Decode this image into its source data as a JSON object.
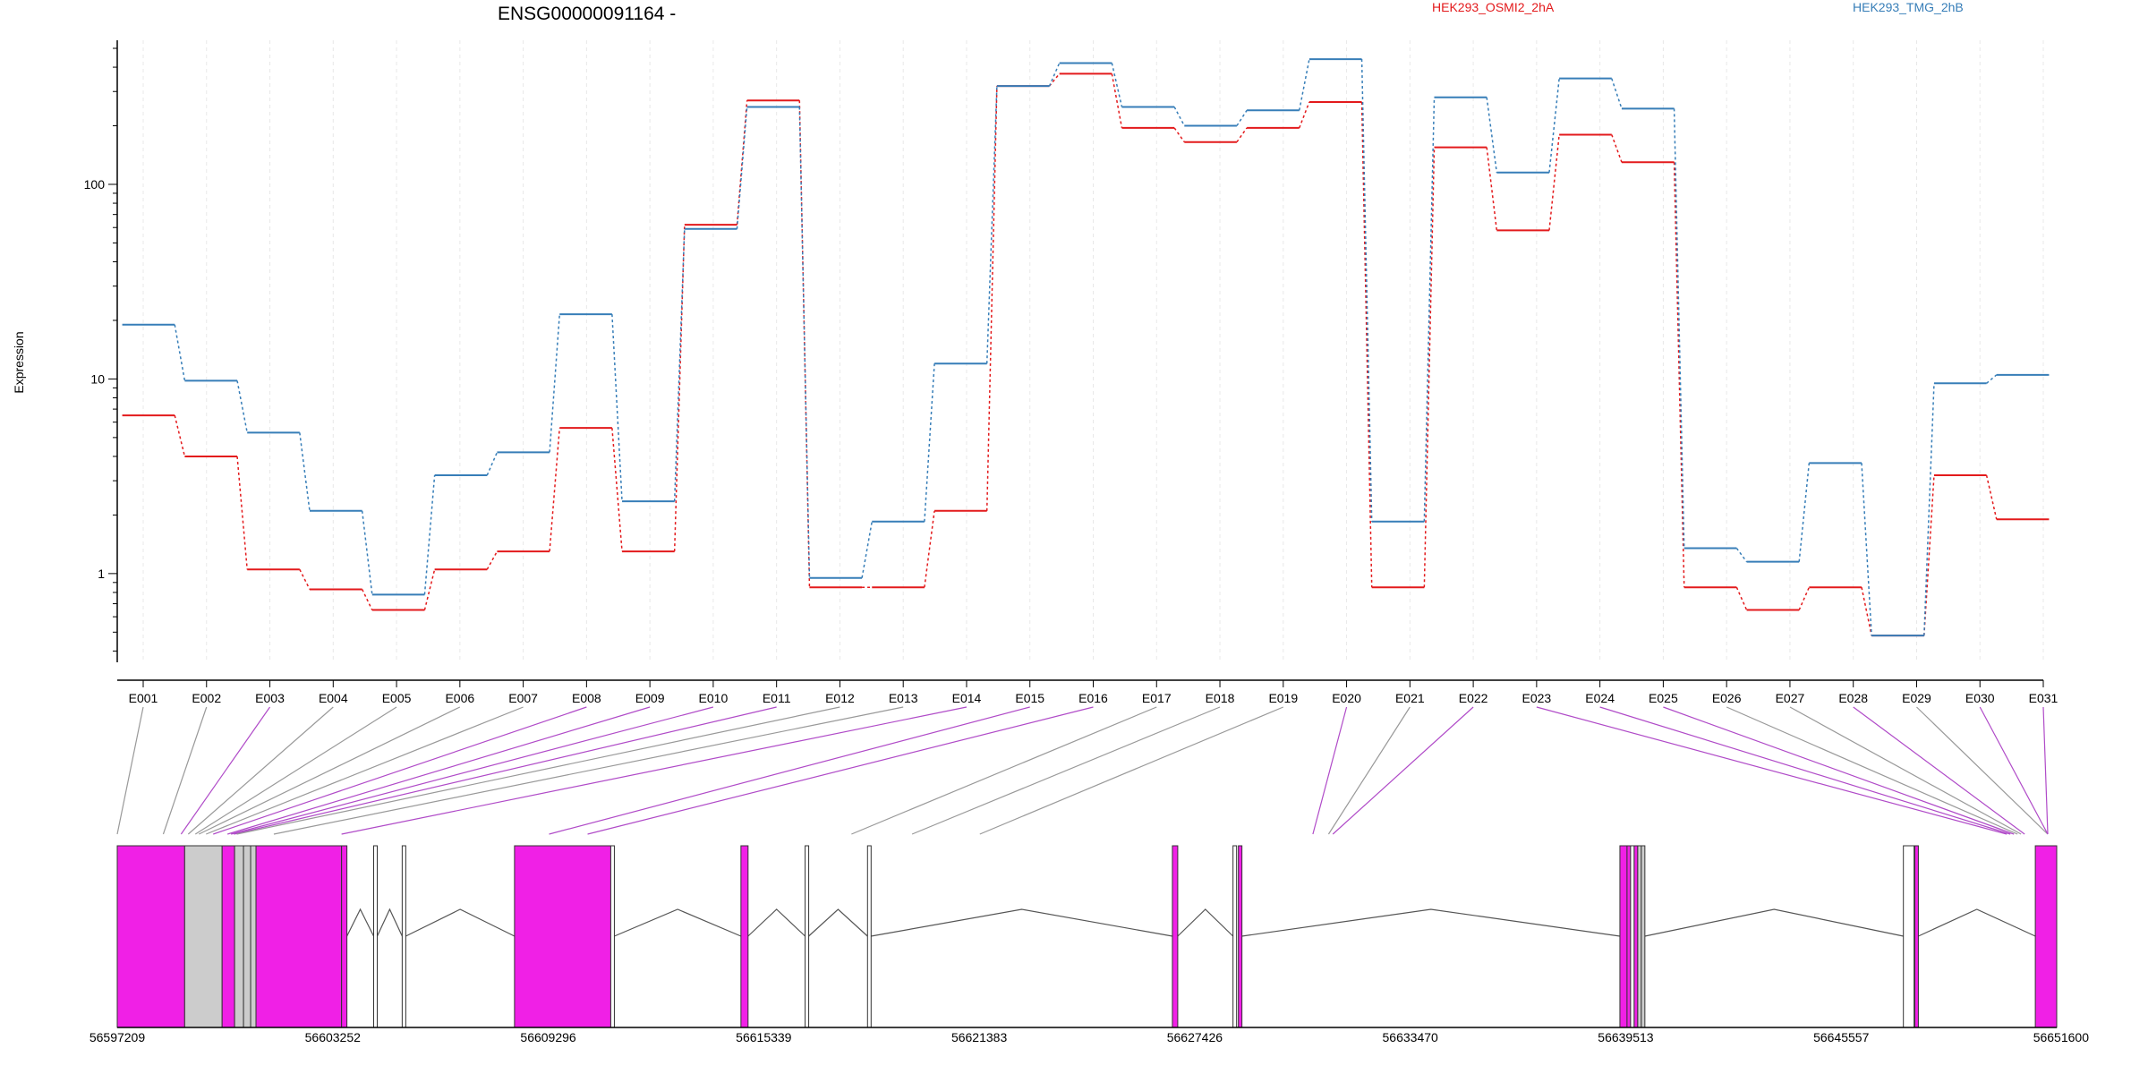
{
  "chart_data": {
    "type": "line",
    "title": "ENSG00000091164 -",
    "ylabel": "Expression",
    "xlabel": "",
    "y_scale": "log",
    "ylim": [
      0.35,
      550
    ],
    "y_ticks": [
      {
        "value": 1,
        "label": "1"
      },
      {
        "value": 10,
        "label": "10"
      },
      {
        "value": 100,
        "label": "100"
      }
    ],
    "categories": [
      "E001",
      "E002",
      "E003",
      "E004",
      "E005",
      "E006",
      "E007",
      "E008",
      "E009",
      "E010",
      "E011",
      "E012",
      "E013",
      "E014",
      "E015",
      "E016",
      "E017",
      "E018",
      "E019",
      "E020",
      "E021",
      "E022",
      "E023",
      "E024",
      "E025",
      "E026",
      "E027",
      "E028",
      "E029",
      "E030",
      "E031"
    ],
    "series": [
      {
        "name": "HEK293_OSMI2_2hA",
        "color": "#e31a1c",
        "values": [
          6.5,
          4.0,
          1.05,
          0.83,
          0.65,
          1.05,
          1.3,
          5.6,
          1.3,
          62,
          270,
          0.85,
          0.85,
          2.1,
          320,
          370,
          195,
          165,
          195,
          265,
          0.85,
          155,
          58,
          180,
          130,
          0.85,
          0.65,
          0.85,
          0.48,
          3.2,
          1.9
        ]
      },
      {
        "name": "HEK293_TMG_2hB",
        "color": "#377eb8",
        "values": [
          19,
          9.8,
          5.3,
          2.1,
          0.78,
          3.2,
          4.2,
          21.5,
          2.35,
          59,
          250,
          0.95,
          1.85,
          12,
          320,
          420,
          250,
          200,
          240,
          440,
          1.85,
          280,
          115,
          350,
          245,
          1.35,
          1.15,
          3.7,
          0.48,
          9.5,
          10.5
        ]
      }
    ],
    "exon_highlight": [
      false,
      false,
      true,
      false,
      false,
      false,
      false,
      true,
      true,
      true,
      true,
      false,
      false,
      true,
      true,
      true,
      false,
      false,
      false,
      true,
      false,
      true,
      true,
      true,
      true,
      false,
      false,
      true,
      false,
      true,
      true
    ],
    "genome": {
      "start": 56597209,
      "end": 56651600,
      "tick_labels": [
        "56597209",
        "56603252",
        "56609296",
        "56615339",
        "56621383",
        "56627426",
        "56633470",
        "56639513",
        "56645557",
        "56651600"
      ],
      "exon_map_genomic": [
        56597209,
        56598500,
        56599000,
        56599200,
        56599400,
        56599500,
        56599700,
        56599900,
        56600300,
        56600400,
        56600480,
        56600560,
        56601600,
        56603500,
        56609320,
        56610400,
        56617800,
        56619500,
        56621400,
        56630740,
        56631180,
        56631300,
        56650200,
        56650300,
        56650400,
        56650500,
        56650600,
        56650700,
        56675000,
        56675400,
        56678200
      ],
      "blocks": [
        {
          "start": 56597209,
          "end": 56599100,
          "fill": "#f020e6"
        },
        {
          "start": 56599100,
          "end": 56600150,
          "fill": "#cccccc"
        },
        {
          "start": 56600150,
          "end": 56600500,
          "fill": "#f020e6"
        },
        {
          "start": 56600500,
          "end": 56600750,
          "fill": "#cccccc"
        },
        {
          "start": 56600750,
          "end": 56600950,
          "fill": "#cccccc"
        },
        {
          "start": 56600950,
          "end": 56601100,
          "fill": "#cccccc"
        },
        {
          "start": 56601100,
          "end": 56603500,
          "fill": "#f020e6"
        },
        {
          "start": 56603500,
          "end": 56603650,
          "fill": "#f020e6"
        },
        {
          "start": 56604400,
          "end": 56604500,
          "fill": "#ffffff"
        },
        {
          "start": 56605200,
          "end": 56605300,
          "fill": "#ffffff"
        },
        {
          "start": 56608350,
          "end": 56611050,
          "fill": "#f020e6"
        },
        {
          "start": 56611050,
          "end": 56611150,
          "fill": "#ffffff"
        },
        {
          "start": 56614700,
          "end": 56614900,
          "fill": "#f020e6"
        },
        {
          "start": 56616500,
          "end": 56616600,
          "fill": "#ffffff"
        },
        {
          "start": 56618250,
          "end": 56618350,
          "fill": "#ffffff"
        },
        {
          "start": 56626800,
          "end": 56626950,
          "fill": "#f020e6"
        },
        {
          "start": 56628500,
          "end": 56628600,
          "fill": "#ffffff"
        },
        {
          "start": 56628650,
          "end": 56628750,
          "fill": "#f020e6"
        },
        {
          "start": 56639350,
          "end": 56639550,
          "fill": "#f020e6"
        },
        {
          "start": 56639550,
          "end": 56639650,
          "fill": "#f020e6"
        },
        {
          "start": 56639650,
          "end": 56639750,
          "fill": "#ffffff"
        },
        {
          "start": 56639750,
          "end": 56639850,
          "fill": "#f020e6"
        },
        {
          "start": 56639850,
          "end": 56639950,
          "fill": "#cccccc"
        },
        {
          "start": 56639950,
          "end": 56640050,
          "fill": "#cccccc"
        },
        {
          "start": 56647300,
          "end": 56647600,
          "fill": "#ffffff"
        },
        {
          "start": 56647620,
          "end": 56647720,
          "fill": "#f020e6"
        },
        {
          "start": 56651000,
          "end": 56651600,
          "fill": "#f020e6"
        }
      ]
    },
    "colors": {
      "highlight_line": "#b04bc8",
      "plain_line": "#999999",
      "gridline": "#e8e8e8"
    }
  }
}
